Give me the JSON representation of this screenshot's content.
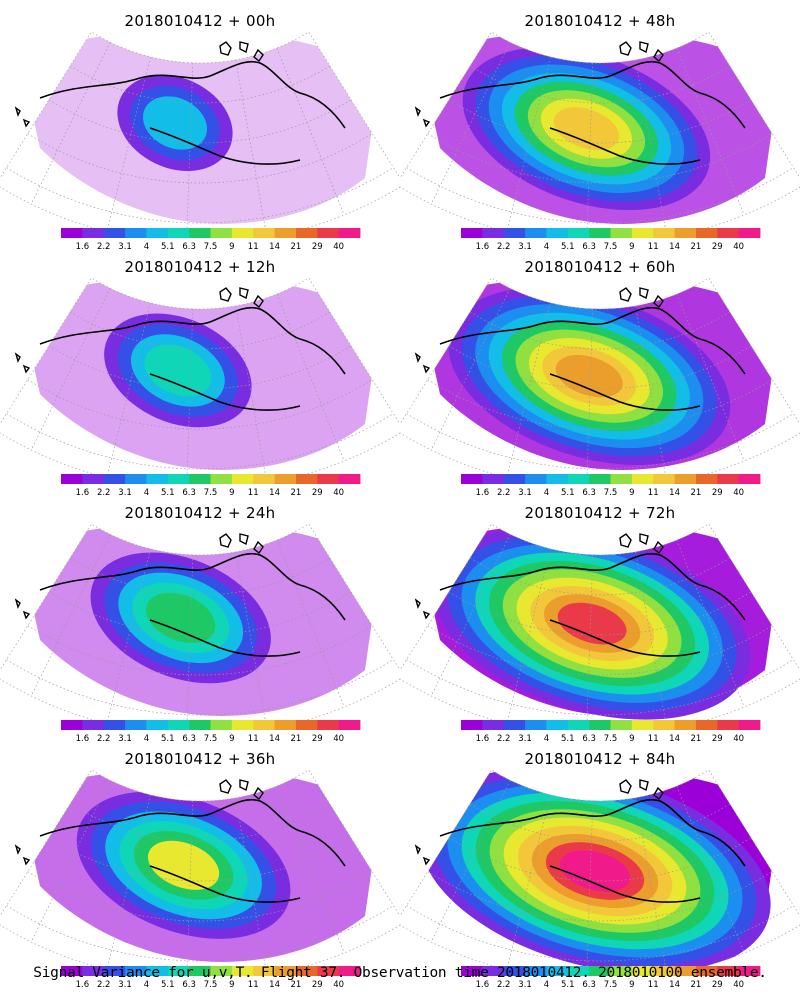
{
  "panels": [
    {
      "title": "2018010412 + 00h",
      "lead_hours": 0,
      "col": 0,
      "row": 0
    },
    {
      "title": "2018010412 + 48h",
      "lead_hours": 48,
      "col": 1,
      "row": 0
    },
    {
      "title": "2018010412 + 12h",
      "lead_hours": 12,
      "col": 0,
      "row": 1
    },
    {
      "title": "2018010412 + 60h",
      "lead_hours": 60,
      "col": 1,
      "row": 1
    },
    {
      "title": "2018010412 + 24h",
      "lead_hours": 24,
      "col": 0,
      "row": 2
    },
    {
      "title": "2018010412 + 72h",
      "lead_hours": 72,
      "col": 1,
      "row": 2
    },
    {
      "title": "2018010412 + 36h",
      "lead_hours": 36,
      "col": 0,
      "row": 3
    },
    {
      "title": "2018010412 + 84h",
      "lead_hours": 84,
      "col": 1,
      "row": 3
    }
  ],
  "colorbar": {
    "colors": [
      "#9b00d8",
      "#7a2de0",
      "#3450e6",
      "#1b8ef0",
      "#12bde8",
      "#10d6b8",
      "#1ec864",
      "#8fe040",
      "#e8e830",
      "#f2c83a",
      "#ec9e2c",
      "#e8682a",
      "#ea3a4a",
      "#f01a8a"
    ],
    "labels": [
      "1.6",
      "2.2",
      "3.1",
      "4",
      "5.1",
      "6.3",
      "7.5",
      "9",
      "11",
      "14",
      "21",
      "29",
      "40"
    ]
  },
  "footer": "Signal Variance for u,v,T. Flight 37. Observation time 2018010412. 2018010100 ensemble."
}
